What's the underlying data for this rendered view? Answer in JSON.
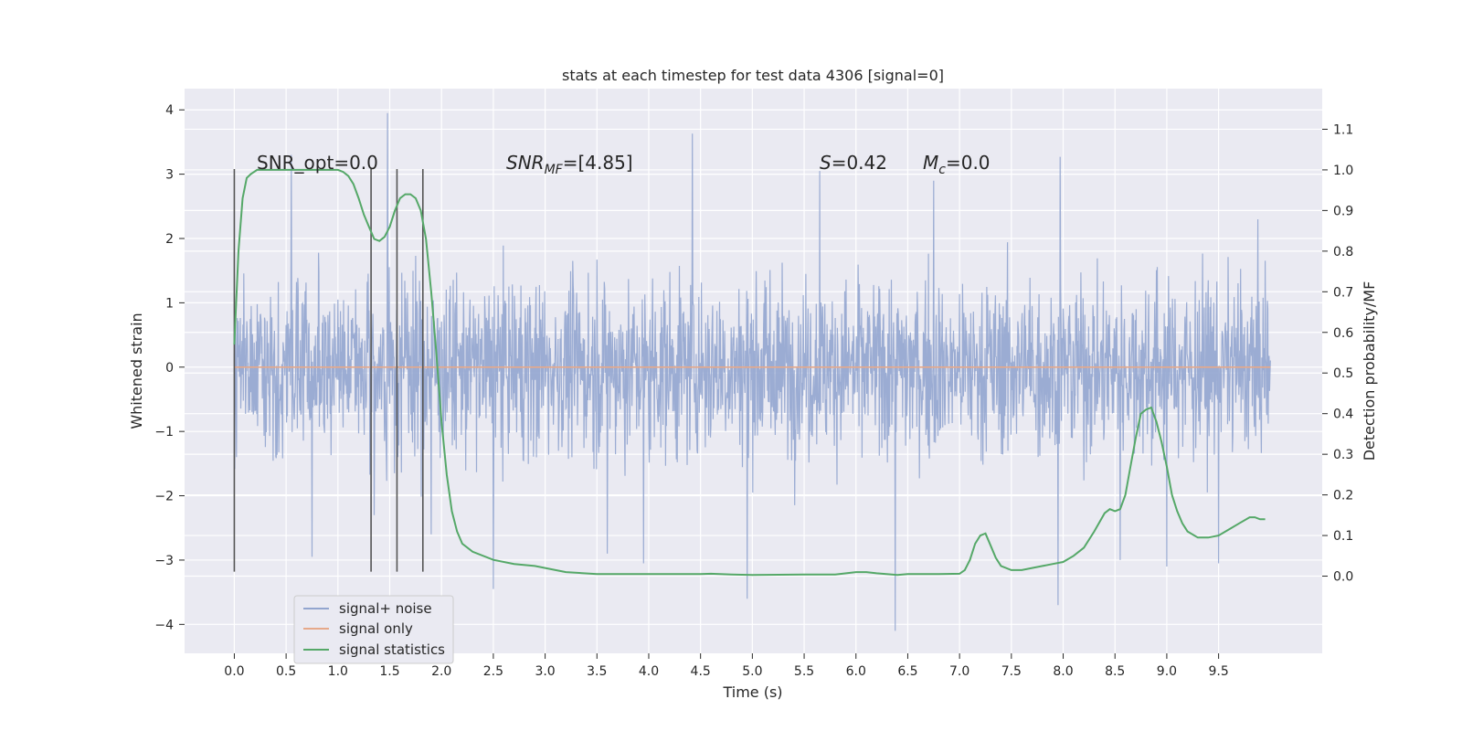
{
  "chart_data": {
    "type": "line",
    "title": "stats at each timestep for test data 4306 [signal=0]",
    "xlabel": "Time (s)",
    "ylabel": "Whitened strain",
    "y2label": "Detection probability/MF",
    "xlim": [
      -0.48,
      10.5
    ],
    "ylim": [
      -4.45,
      4.33
    ],
    "y2lim": [
      -0.19,
      1.2
    ],
    "x_ticks": [
      "0.0",
      "0.5",
      "1.0",
      "1.5",
      "2.0",
      "2.5",
      "3.0",
      "3.5",
      "4.0",
      "4.5",
      "5.0",
      "5.5",
      "6.0",
      "6.5",
      "7.0",
      "7.5",
      "8.0",
      "8.5",
      "9.0",
      "9.5"
    ],
    "y_ticks": [
      "4",
      "3",
      "2",
      "1",
      "0",
      "−1",
      "−2",
      "−3",
      "−4"
    ],
    "y2_ticks": [
      "1.1",
      "1.0",
      "0.9",
      "0.8",
      "0.7",
      "0.6",
      "0.5",
      "0.4",
      "0.3",
      "0.2",
      "0.1",
      "0.0"
    ],
    "grid": true,
    "legend_position": "lower-left",
    "annotations": {
      "snr_opt": "SNR_opt=0.0",
      "snr_mf_main": "SNR",
      "snr_mf_sub": "MF",
      "snr_mf_value": "=[4.85]",
      "s_symbol": "S",
      "s_value": "=0.42",
      "mc_symbol": "M",
      "mc_sub": "c",
      "mc_value": "=0.0"
    },
    "vertical_markers_s": [
      0.0,
      1.32,
      1.57,
      1.82
    ],
    "series": [
      {
        "name": "signal+ noise",
        "color": "#92a5cf",
        "envelope": {
          "x_range": [
            0.0,
            10.0
          ],
          "typical_band": [
            -1.8,
            1.8
          ],
          "min": -4.1,
          "max": 3.95,
          "spikes": [
            [
              0.55,
              3.3
            ],
            [
              0.75,
              -2.95
            ],
            [
              1.35,
              -2.3
            ],
            [
              1.48,
              3.95
            ],
            [
              1.9,
              -2.6
            ],
            [
              2.5,
              -3.45
            ],
            [
              3.6,
              -2.9
            ],
            [
              3.95,
              -3.05
            ],
            [
              4.42,
              3.63
            ],
            [
              4.95,
              -3.6
            ],
            [
              5.65,
              3.05
            ],
            [
              6.38,
              -4.1
            ],
            [
              6.75,
              2.9
            ],
            [
              7.95,
              -3.7
            ],
            [
              7.97,
              3.27
            ],
            [
              8.55,
              -3.0
            ],
            [
              9.0,
              -3.1
            ],
            [
              9.5,
              -3.05
            ]
          ]
        }
      },
      {
        "name": "signal only",
        "color": "#dd8452",
        "constant_y": 0.0,
        "x_range": [
          0.0,
          10.0
        ]
      },
      {
        "name": "signal statistics",
        "color": "#55a868",
        "axis": "right",
        "x": [
          0.0,
          0.04,
          0.08,
          0.12,
          0.16,
          0.22,
          0.3,
          0.45,
          0.6,
          0.75,
          0.9,
          1.0,
          1.05,
          1.1,
          1.15,
          1.2,
          1.25,
          1.3,
          1.35,
          1.4,
          1.45,
          1.5,
          1.55,
          1.6,
          1.65,
          1.7,
          1.75,
          1.8,
          1.85,
          1.9,
          1.95,
          2.0,
          2.05,
          2.1,
          2.15,
          2.2,
          2.3,
          2.5,
          2.7,
          2.9,
          3.0,
          3.2,
          3.5,
          4.0,
          4.5,
          4.6,
          4.8,
          5.0,
          5.5,
          5.8,
          6.0,
          6.1,
          6.2,
          6.4,
          6.5,
          6.8,
          7.0,
          7.05,
          7.1,
          7.15,
          7.2,
          7.25,
          7.3,
          7.35,
          7.4,
          7.5,
          7.6,
          7.7,
          7.8,
          7.9,
          8.0,
          8.1,
          8.2,
          8.3,
          8.4,
          8.45,
          8.5,
          8.55,
          8.6,
          8.65,
          8.7,
          8.75,
          8.8,
          8.85,
          8.9,
          8.95,
          9.0,
          9.05,
          9.1,
          9.15,
          9.2,
          9.3,
          9.4,
          9.5,
          9.6,
          9.7,
          9.8,
          9.85,
          9.9,
          9.95
        ],
        "values": [
          0.57,
          0.8,
          0.93,
          0.98,
          0.99,
          1.0,
          1.0,
          1.0,
          1.0,
          1.0,
          1.0,
          1.0,
          0.995,
          0.985,
          0.965,
          0.93,
          0.89,
          0.86,
          0.83,
          0.825,
          0.835,
          0.86,
          0.9,
          0.93,
          0.94,
          0.94,
          0.93,
          0.9,
          0.83,
          0.7,
          0.55,
          0.38,
          0.25,
          0.16,
          0.11,
          0.08,
          0.06,
          0.04,
          0.03,
          0.025,
          0.02,
          0.01,
          0.005,
          0.005,
          0.005,
          0.006,
          0.004,
          0.003,
          0.004,
          0.004,
          0.01,
          0.01,
          0.007,
          0.003,
          0.005,
          0.005,
          0.006,
          0.015,
          0.04,
          0.08,
          0.1,
          0.105,
          0.075,
          0.045,
          0.025,
          0.015,
          0.015,
          0.02,
          0.025,
          0.03,
          0.035,
          0.05,
          0.07,
          0.11,
          0.155,
          0.165,
          0.16,
          0.165,
          0.2,
          0.27,
          0.34,
          0.4,
          0.41,
          0.415,
          0.38,
          0.33,
          0.27,
          0.2,
          0.16,
          0.13,
          0.11,
          0.095,
          0.095,
          0.1,
          0.115,
          0.13,
          0.145,
          0.145,
          0.14,
          0.14
        ]
      }
    ]
  }
}
